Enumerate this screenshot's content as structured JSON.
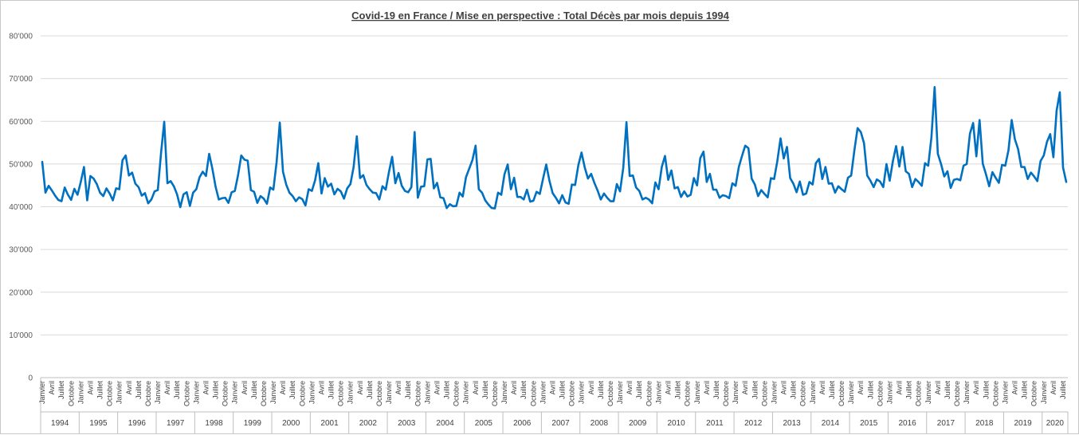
{
  "chart_data": {
    "type": "line",
    "title": "Covid-19 en France / Mise en perspective : Total Décès par mois  depuis 1994",
    "xlabel": "",
    "ylabel": "",
    "ylim": [
      0,
      80000
    ],
    "yticks": [
      0,
      10000,
      20000,
      30000,
      40000,
      50000,
      60000,
      70000,
      80000
    ],
    "ytick_labels": [
      "0",
      "10'000",
      "20'000",
      "30'000",
      "40'000",
      "50'000",
      "60'000",
      "70'000",
      "80'000"
    ],
    "grid": true,
    "legend": "none",
    "color": "#0070c0",
    "month_tick_labels": [
      "Janvier",
      "Avril",
      "Juillet",
      "Octobre"
    ],
    "years": [
      "1994",
      "1995",
      "1996",
      "1997",
      "1998",
      "1999",
      "2000",
      "2001",
      "2002",
      "2003",
      "2004",
      "2005",
      "2006",
      "2007",
      "2008",
      "2009",
      "2010",
      "2011",
      "2012",
      "2013",
      "2014",
      "2015",
      "2016",
      "2017",
      "2018",
      "2019",
      "2020"
    ],
    "series": [
      {
        "values": [
          50500,
          43300,
          44900,
          43800,
          42600,
          41600,
          41300,
          44500,
          42800,
          41600,
          44200,
          42800,
          45800,
          49300,
          41500,
          47200,
          46600,
          45300,
          43300,
          42500,
          44300,
          43100,
          41500,
          44300,
          44100,
          50900,
          52000,
          47300,
          48000,
          45400,
          44600,
          42600,
          43200,
          40800,
          41700,
          43600,
          43900,
          52500,
          59900,
          45500,
          46000,
          44800,
          42900,
          39900,
          42900,
          43400,
          40200,
          43300,
          44100,
          46900,
          48200,
          47200,
          52400,
          48900,
          44700,
          41700,
          42000,
          42100,
          40900,
          43400,
          43700,
          47400,
          52000,
          51000,
          50800,
          43900,
          43500,
          40900,
          42500,
          41900,
          40700,
          44500,
          44000,
          50400,
          59700,
          48200,
          45200,
          43300,
          42500,
          41300,
          42200,
          41800,
          40300,
          44100,
          43700,
          46200,
          50200,
          43100,
          46700,
          44700,
          45400,
          42900,
          44200,
          43600,
          41900,
          44300,
          45300,
          49300,
          56500,
          46700,
          47400,
          45100,
          44100,
          43300,
          43200,
          41700,
          44800,
          44000,
          48100,
          51700,
          45500,
          47900,
          44900,
          43700,
          43400,
          44600,
          57500,
          42100,
          44700,
          44800,
          51100,
          51200,
          44300,
          45600,
          42200,
          42000,
          39700,
          40600,
          40100,
          40200,
          43300,
          42400,
          46900,
          48900,
          50900,
          54300,
          44100,
          43300,
          41500,
          40500,
          39700,
          39600,
          43300,
          42800,
          47600,
          49900,
          44100,
          46800,
          42300,
          42300,
          41700,
          44000,
          41200,
          41400,
          43500,
          43000,
          46500,
          49900,
          46100,
          43200,
          42100,
          40800,
          42700,
          41000,
          40700,
          45200,
          45100,
          49700,
          52700,
          49200,
          46600,
          47700,
          45600,
          43800,
          41700,
          43100,
          42100,
          41300,
          41300,
          45300,
          43600,
          49100,
          59800,
          47200,
          47300,
          44500,
          43700,
          41700,
          42100,
          41700,
          40800,
          45700,
          44100,
          49300,
          51900,
          46300,
          48500,
          44300,
          44600,
          42300,
          43600,
          42400,
          42800,
          46700,
          45000,
          51400,
          52900,
          45800,
          47700,
          44000,
          44000,
          42100,
          42700,
          42500,
          42000,
          45500,
          44900,
          49300,
          51900,
          54300,
          53700,
          46600,
          45200,
          42500,
          43900,
          43000,
          42200,
          46700,
          46500,
          50700,
          56000,
          51300,
          54000,
          46700,
          45400,
          43400,
          45900,
          42800,
          43100,
          45800,
          45200,
          50200,
          51200,
          46500,
          49300,
          45400,
          45500,
          43300,
          44800,
          44100,
          43500,
          46800,
          47300,
          53200,
          58400,
          57500,
          54900,
          47300,
          46100,
          44600,
          46400,
          45900,
          44600,
          50000,
          46100,
          50700,
          54200,
          49400,
          54000,
          48300,
          47700,
          44600,
          46500,
          45800,
          44900,
          50200,
          49600,
          56200,
          68000,
          52400,
          50000,
          47100,
          48300,
          44400,
          46300,
          46500,
          46200,
          49600,
          50000,
          57100,
          59600,
          51800,
          60300,
          50100,
          47600,
          44800,
          48100,
          46800,
          45600,
          49800,
          49600,
          53200,
          60300,
          55800,
          53500,
          49300,
          49300,
          46500,
          48000,
          47100,
          46000,
          50700,
          52000,
          55200,
          57000,
          51600,
          62500,
          66800,
          49200,
          45800
        ]
      }
    ]
  }
}
